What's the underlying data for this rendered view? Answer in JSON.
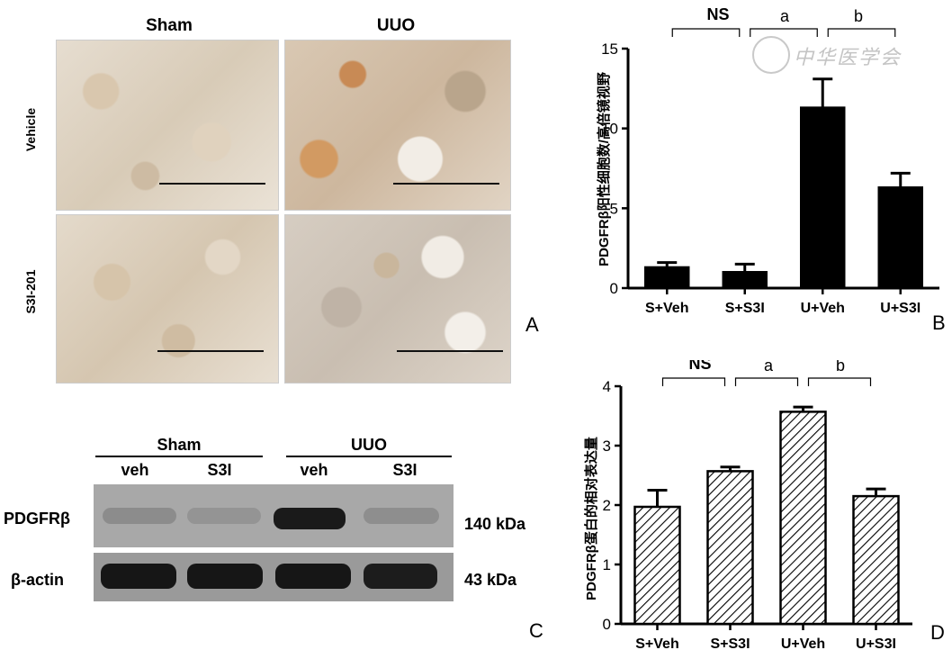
{
  "panelA": {
    "letter": "A",
    "columns": [
      "Sham",
      "UUO"
    ],
    "rows": [
      "Vehicle",
      "S3I-201"
    ]
  },
  "panelB": {
    "letter": "B",
    "sig_labels": [
      "NS",
      "a",
      "b"
    ]
  },
  "panelC": {
    "letter": "C",
    "groups": [
      "Sham",
      "UUO"
    ],
    "lanes": [
      "veh",
      "S3I",
      "veh",
      "S3I"
    ],
    "proteins": [
      "PDGFRβ",
      "β-actin"
    ],
    "sizes": [
      "140 kDa",
      "43 kDa"
    ]
  },
  "panelD": {
    "letter": "D",
    "sig_labels": [
      "NS",
      "a",
      "b"
    ]
  },
  "watermark": "中华医学会",
  "chart_data": [
    {
      "type": "bar",
      "panel": "B",
      "title": "",
      "xlabel": "",
      "ylabel": "PDGFRβ阳性细胞数/高倍镜视野",
      "categories": [
        "S+Veh",
        "S+S3I",
        "U+Veh",
        "U+S3I"
      ],
      "values": [
        1.3,
        1.0,
        11.3,
        6.3
      ],
      "errors": [
        0.3,
        0.5,
        1.8,
        0.9
      ],
      "ylim": [
        0,
        15
      ],
      "yticks": [
        0,
        5,
        10,
        15
      ],
      "fill": "solid",
      "color": "#000000"
    },
    {
      "type": "bar",
      "panel": "D",
      "title": "",
      "xlabel": "",
      "ylabel": "PDGFRβ蛋白的相对表达量",
      "categories": [
        "S+Veh",
        "S+S3I",
        "U+Veh",
        "U+S3I"
      ],
      "values": [
        1.97,
        2.57,
        3.57,
        2.15
      ],
      "errors": [
        0.28,
        0.07,
        0.08,
        0.12
      ],
      "ylim": [
        0,
        4
      ],
      "yticks": [
        0,
        1,
        2,
        3,
        4
      ],
      "fill": "hatched",
      "color": "#000000"
    }
  ]
}
